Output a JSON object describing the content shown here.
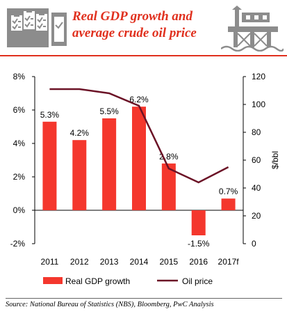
{
  "header": {
    "title_line1": "Real GDP growth and",
    "title_line2": "average crude oil price",
    "left_icon": "clipboard-checklist-icon",
    "right_icon": "oil-rig-icon",
    "accent_color": "#e0301e",
    "icon_color": "#7f7f7f"
  },
  "chart_data": {
    "type": "bar",
    "categories": [
      "2011",
      "2012",
      "2013",
      "2014",
      "2015",
      "2016",
      "2017f"
    ],
    "series": [
      {
        "name": "Real GDP growth",
        "type": "bar",
        "axis": "left",
        "color": "#f4372d",
        "values": [
          5.3,
          4.2,
          5.5,
          6.2,
          2.8,
          -1.5,
          0.7
        ],
        "labels": [
          "5.3%",
          "4.2%",
          "5.5%",
          "6.2%",
          "2.8%",
          "-1.5%",
          "0.7%"
        ]
      },
      {
        "name": "Oil price",
        "type": "line",
        "axis": "right",
        "color": "#6b1226",
        "values": [
          111,
          111,
          108,
          99,
          54,
          44,
          55
        ]
      }
    ],
    "y_left": {
      "min": -2,
      "max": 8,
      "ticks": [
        -2,
        0,
        2,
        4,
        6,
        8
      ],
      "tick_labels": [
        "-2%",
        "0%",
        "2%",
        "4%",
        "6%",
        "8%"
      ]
    },
    "y_right": {
      "min": 0,
      "max": 120,
      "ticks": [
        0,
        20,
        40,
        60,
        80,
        100,
        120
      ],
      "tick_labels": [
        "0",
        "20",
        "40",
        "60",
        "80",
        "100",
        "120"
      ],
      "label": "$/bbl"
    },
    "legend_position": "bottom",
    "grid": false
  },
  "source": "Source: National Bureau of Statistics (NBS), Bloomberg, PwC Analysis"
}
